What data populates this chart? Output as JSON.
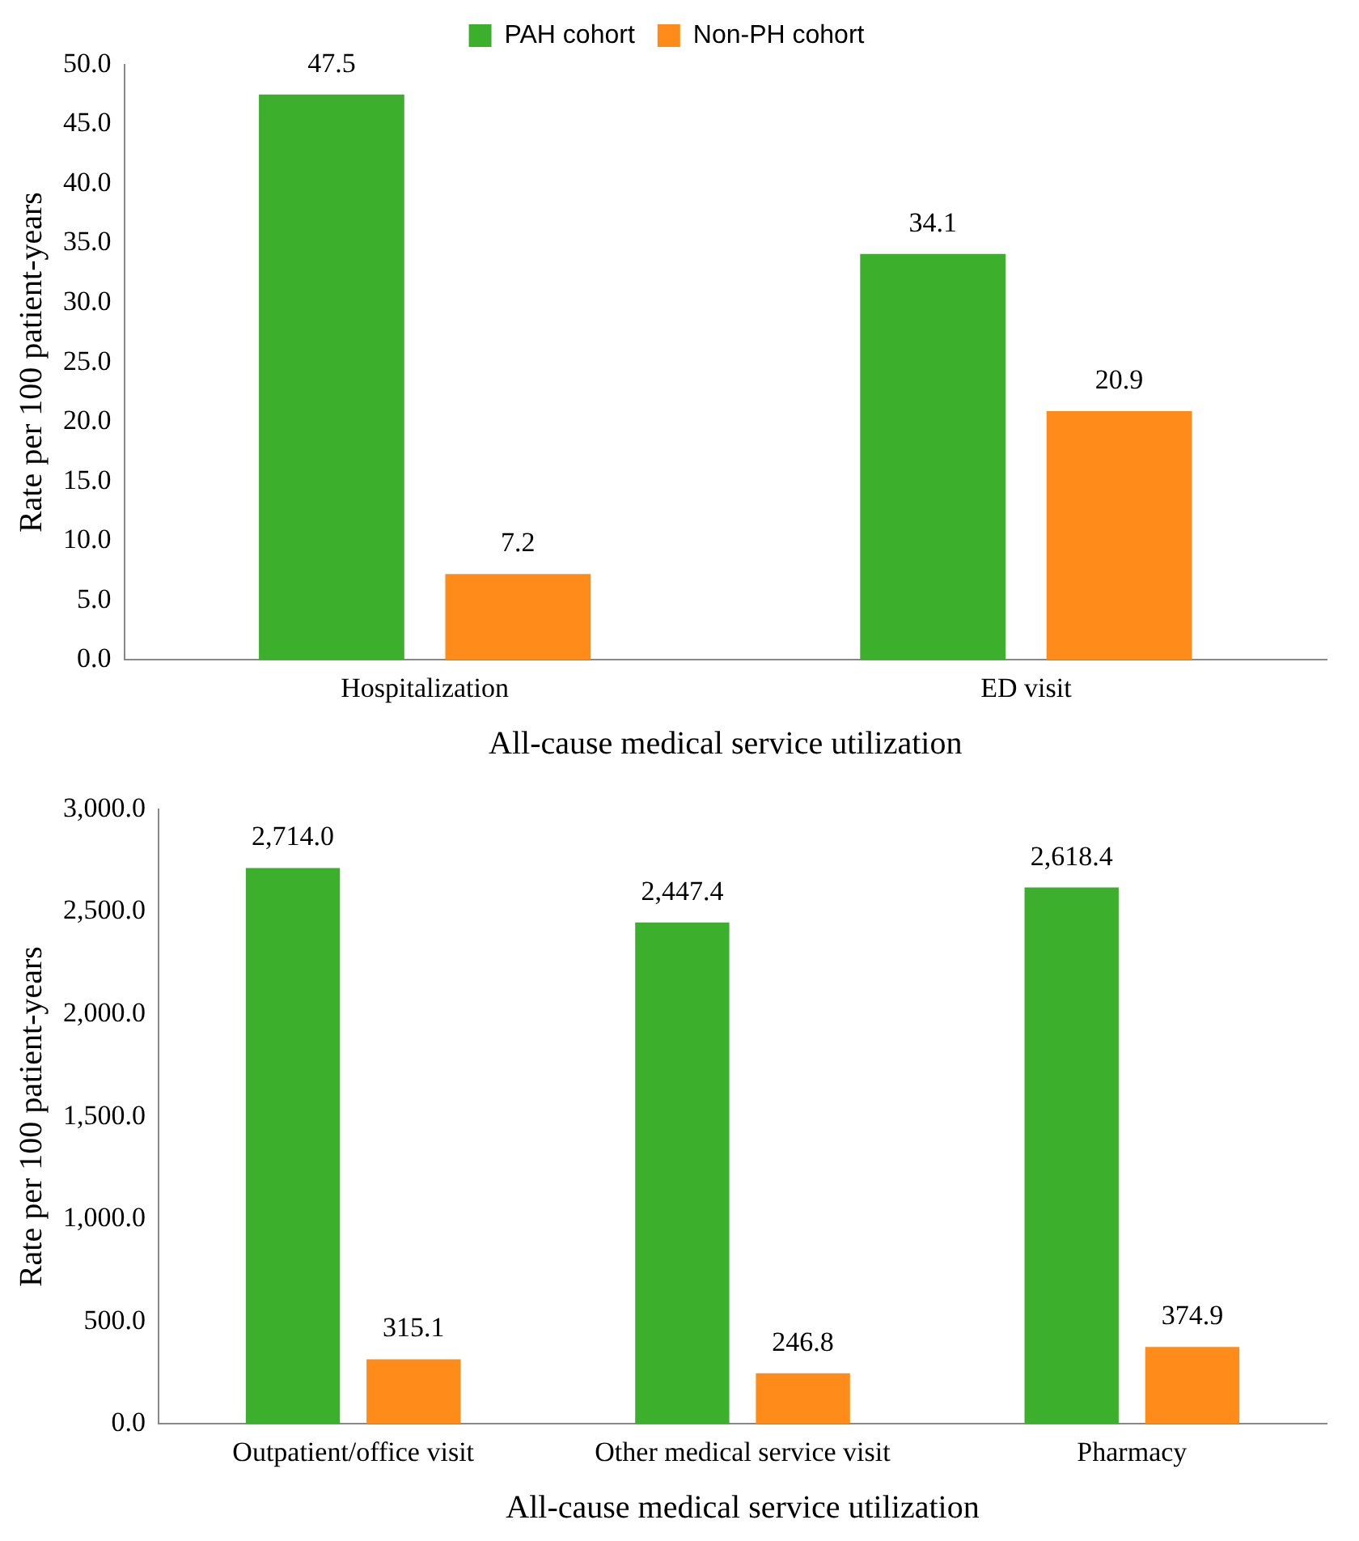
{
  "chart_data": [
    {
      "type": "bar",
      "xlabel": "All-cause medical service utilization",
      "ylabel": "Rate per 100 patient-years",
      "categories": [
        "Hospitalization",
        "ED visit"
      ],
      "series": [
        {
          "name": "PAH cohort",
          "color": "#3cb02c",
          "values": [
            47.5,
            34.1
          ]
        },
        {
          "name": "Non-PH cohort",
          "color": "#ff8c1a",
          "values": [
            7.2,
            20.9
          ]
        }
      ],
      "ylim": [
        0,
        50
      ],
      "yticks": [
        {
          "value": 0,
          "label": "0.0"
        },
        {
          "value": 5,
          "label": "5.0"
        },
        {
          "value": 10,
          "label": "10.0"
        },
        {
          "value": 15,
          "label": "15.0"
        },
        {
          "value": 20,
          "label": "20.0"
        },
        {
          "value": 25,
          "label": "25.0"
        },
        {
          "value": 30,
          "label": "30.0"
        },
        {
          "value": 35,
          "label": "35.0"
        },
        {
          "value": 40,
          "label": "40.0"
        },
        {
          "value": 45,
          "label": "45.0"
        },
        {
          "value": 50,
          "label": "50.0"
        }
      ],
      "data_labels": true,
      "legend": "top",
      "grid": false
    },
    {
      "type": "bar",
      "xlabel": "All-cause medical service utilization",
      "ylabel": "Rate per 100 patient-years",
      "categories": [
        "Outpatient/office visit",
        "Other medical service visit",
        "Pharmacy"
      ],
      "series": [
        {
          "color": "#3cb02c",
          "values": [
            2714.0,
            2447.4,
            2618.4
          ],
          "value_labels": [
            "2,714.0",
            "2,447.4",
            "2,618.4"
          ]
        },
        {
          "color": "#ff8c1a",
          "values": [
            315.1,
            246.8,
            374.9
          ],
          "value_labels": [
            "315.1",
            "246.8",
            "374.9"
          ]
        }
      ],
      "ylim": [
        0,
        3000
      ],
      "yticks": [
        {
          "value": 0,
          "label": "0.0"
        },
        {
          "value": 500,
          "label": "500.0"
        },
        {
          "value": 1000,
          "label": "1,000.0"
        },
        {
          "value": 1500,
          "label": "1,500.0"
        },
        {
          "value": 2000,
          "label": "2,000.0"
        },
        {
          "value": 2500,
          "label": "2,500.0"
        },
        {
          "value": 3000,
          "label": "3,000.0"
        }
      ],
      "legend": false,
      "grid": false
    }
  ]
}
